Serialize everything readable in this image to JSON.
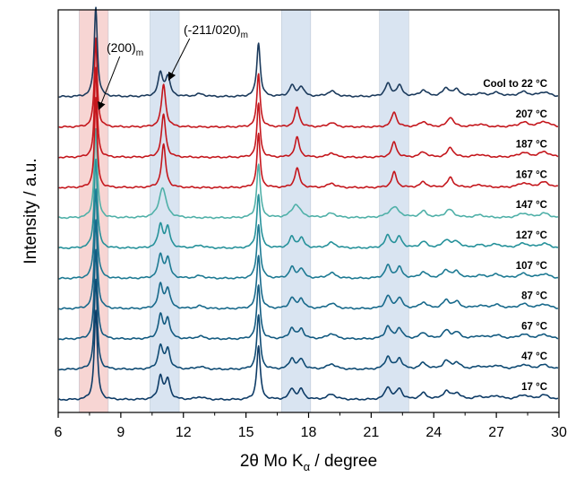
{
  "chart_data": {
    "type": "line",
    "xlabel_parts": {
      "pre": "2θ Mo K",
      "sub": "α",
      "post": " / degree"
    },
    "ylabel": "Intensity / a.u.",
    "xlim": [
      6,
      30
    ],
    "xticks": [
      6,
      9,
      12,
      15,
      18,
      21,
      24,
      27,
      30
    ],
    "highlight_bands": [
      {
        "x": [
          7.0,
          8.4
        ],
        "color": "#f7d5d3"
      },
      {
        "x": [
          10.4,
          11.8
        ],
        "color": "#d9e4f1"
      },
      {
        "x": [
          16.7,
          18.1
        ],
        "color": "#d9e4f1"
      },
      {
        "x": [
          21.4,
          22.8
        ],
        "color": "#d9e4f1"
      }
    ],
    "annotations": [
      {
        "label": "(200)",
        "sub": "m",
        "x": 7.95,
        "arrow_tail": [
          8.95,
          0.62
        ]
      },
      {
        "label": "(-211/020)",
        "sub": "m",
        "x": 11.3,
        "arrow_tail": [
          12.3,
          0.72
        ]
      }
    ],
    "peak_types": {
      "monoclinic": [
        [
          7.8,
          1.0,
          0.09
        ],
        [
          10.9,
          0.26,
          0.13
        ],
        [
          11.25,
          0.22,
          0.13
        ],
        [
          12.8,
          0.03,
          0.25
        ],
        [
          15.6,
          0.6,
          0.1
        ],
        [
          17.2,
          0.12,
          0.15
        ],
        [
          17.65,
          0.11,
          0.15
        ],
        [
          19.1,
          0.06,
          0.25
        ],
        [
          21.8,
          0.14,
          0.16
        ],
        [
          22.35,
          0.12,
          0.16
        ],
        [
          23.5,
          0.07,
          0.2
        ],
        [
          24.6,
          0.09,
          0.2
        ],
        [
          25.1,
          0.07,
          0.2
        ],
        [
          26.2,
          0.03,
          0.3
        ],
        [
          27.0,
          0.04,
          0.3
        ],
        [
          28.3,
          0.05,
          0.3
        ],
        [
          29.3,
          0.05,
          0.3
        ]
      ],
      "transition": [
        [
          7.8,
          1.0,
          0.09
        ],
        [
          11.0,
          0.34,
          0.2
        ],
        [
          15.6,
          0.6,
          0.1
        ],
        [
          17.4,
          0.15,
          0.25
        ],
        [
          19.1,
          0.05,
          0.25
        ],
        [
          22.1,
          0.12,
          0.3
        ],
        [
          23.5,
          0.07,
          0.2
        ],
        [
          24.75,
          0.09,
          0.25
        ],
        [
          26.2,
          0.03,
          0.3
        ],
        [
          28.3,
          0.05,
          0.3
        ],
        [
          29.3,
          0.05,
          0.3
        ]
      ],
      "high": [
        [
          7.8,
          1.0,
          0.08
        ],
        [
          11.05,
          0.48,
          0.12
        ],
        [
          15.6,
          0.6,
          0.09
        ],
        [
          17.45,
          0.22,
          0.13
        ],
        [
          19.1,
          0.05,
          0.2
        ],
        [
          22.1,
          0.17,
          0.14
        ],
        [
          23.5,
          0.06,
          0.2
        ],
        [
          24.8,
          0.11,
          0.17
        ],
        [
          26.2,
          0.03,
          0.3
        ],
        [
          28.3,
          0.05,
          0.3
        ],
        [
          29.3,
          0.06,
          0.3
        ]
      ]
    },
    "series": [
      {
        "name": "17 °C",
        "color": "#0d3b66",
        "pattern": "monoclinic"
      },
      {
        "name": "47 °C",
        "color": "#0e4a73",
        "pattern": "monoclinic"
      },
      {
        "name": "67 °C",
        "color": "#125a80",
        "pattern": "monoclinic"
      },
      {
        "name": "87 °C",
        "color": "#17698b",
        "pattern": "monoclinic"
      },
      {
        "name": "107 °C",
        "color": "#1d7a93",
        "pattern": "monoclinic"
      },
      {
        "name": "127 °C",
        "color": "#25919a",
        "pattern": "monoclinic"
      },
      {
        "name": "147 °C",
        "color": "#4fb0a8",
        "pattern": "transition"
      },
      {
        "name": "167 °C",
        "color": "#c4161c",
        "pattern": "high"
      },
      {
        "name": "187 °C",
        "color": "#c4161c",
        "pattern": "high"
      },
      {
        "name": "207 °C",
        "color": "#c4161c",
        "pattern": "high"
      },
      {
        "name": "Cool to 22 °C",
        "color": "#1b3a5c",
        "pattern": "monoclinic"
      }
    ]
  }
}
